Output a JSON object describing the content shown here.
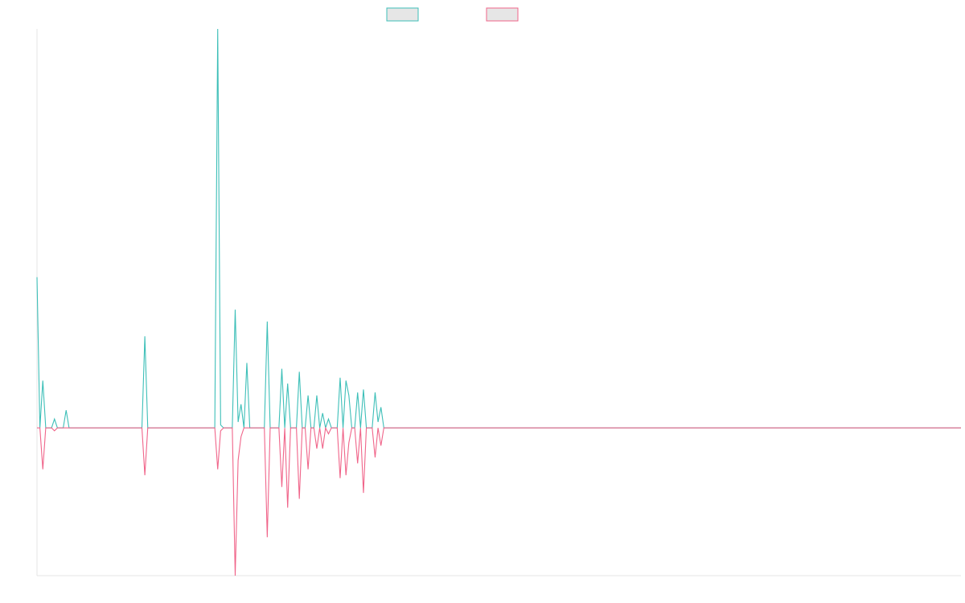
{
  "colors": {
    "background": "#ffffff",
    "axis": "#e4e4e4",
    "legend_fill": "#e6e6e6"
  },
  "chart_data": {
    "type": "line",
    "title": "",
    "xlabel": "",
    "ylabel": "",
    "grid": false,
    "legend_placement": "top-center",
    "x_range": [
      0,
      317
    ],
    "ylim": [
      -50,
      135
    ],
    "series": [
      {
        "color": "#3dbfb8",
        "points": [
          [
            0,
            51
          ],
          [
            1,
            0
          ],
          [
            2,
            16
          ],
          [
            3,
            0
          ],
          [
            4,
            0
          ],
          [
            5,
            0
          ],
          [
            6,
            3
          ],
          [
            7,
            0
          ],
          [
            8,
            0
          ],
          [
            9,
            0
          ],
          [
            10,
            6
          ],
          [
            11,
            0
          ],
          [
            36,
            0
          ],
          [
            37,
            31
          ],
          [
            38,
            0
          ],
          [
            61,
            0
          ],
          [
            62,
            135
          ],
          [
            63,
            1
          ],
          [
            64,
            0
          ],
          [
            67,
            0
          ],
          [
            68,
            40
          ],
          [
            69,
            2
          ],
          [
            70,
            8
          ],
          [
            71,
            0
          ],
          [
            72,
            22
          ],
          [
            73,
            0
          ],
          [
            75,
            0
          ],
          [
            76,
            0
          ],
          [
            77,
            0
          ],
          [
            78,
            0
          ],
          [
            79,
            36
          ],
          [
            80,
            0
          ],
          [
            82,
            0
          ],
          [
            83,
            0
          ],
          [
            84,
            20
          ],
          [
            85,
            0
          ],
          [
            86,
            15
          ],
          [
            87,
            0
          ],
          [
            88,
            0
          ],
          [
            89,
            0
          ],
          [
            90,
            19
          ],
          [
            91,
            0
          ],
          [
            92,
            0
          ],
          [
            93,
            11
          ],
          [
            94,
            0
          ],
          [
            95,
            0
          ],
          [
            96,
            11
          ],
          [
            97,
            0
          ],
          [
            98,
            5
          ],
          [
            99,
            0
          ],
          [
            100,
            3
          ],
          [
            101,
            0
          ],
          [
            102,
            0
          ],
          [
            103,
            0
          ],
          [
            104,
            17
          ],
          [
            105,
            0
          ],
          [
            106,
            16
          ],
          [
            107,
            11
          ],
          [
            108,
            0
          ],
          [
            109,
            0
          ],
          [
            110,
            12
          ],
          [
            111,
            0
          ],
          [
            112,
            13
          ],
          [
            113,
            0
          ],
          [
            114,
            0
          ],
          [
            115,
            0
          ],
          [
            116,
            12
          ],
          [
            117,
            2
          ],
          [
            118,
            7
          ],
          [
            119,
            0
          ],
          [
            317,
            0
          ]
        ]
      },
      {
        "color": "#f0658a",
        "points": [
          [
            0,
            0
          ],
          [
            1,
            0
          ],
          [
            2,
            -14
          ],
          [
            3,
            0
          ],
          [
            4,
            0
          ],
          [
            5,
            0
          ],
          [
            6,
            -1
          ],
          [
            7,
            0
          ],
          [
            8,
            0
          ],
          [
            9,
            0
          ],
          [
            10,
            0
          ],
          [
            11,
            0
          ],
          [
            36,
            0
          ],
          [
            37,
            -16
          ],
          [
            38,
            0
          ],
          [
            61,
            0
          ],
          [
            62,
            -14
          ],
          [
            63,
            -1
          ],
          [
            64,
            0
          ],
          [
            67,
            0
          ],
          [
            68,
            -50
          ],
          [
            69,
            -11
          ],
          [
            70,
            -3
          ],
          [
            71,
            0
          ],
          [
            72,
            0
          ],
          [
            73,
            0
          ],
          [
            75,
            0
          ],
          [
            76,
            0
          ],
          [
            77,
            0
          ],
          [
            78,
            0
          ],
          [
            79,
            -37
          ],
          [
            80,
            0
          ],
          [
            82,
            0
          ],
          [
            83,
            0
          ],
          [
            84,
            -20
          ],
          [
            85,
            0
          ],
          [
            86,
            -27
          ],
          [
            87,
            0
          ],
          [
            88,
            0
          ],
          [
            89,
            0
          ],
          [
            90,
            -24
          ],
          [
            91,
            0
          ],
          [
            92,
            0
          ],
          [
            93,
            -14
          ],
          [
            94,
            0
          ],
          [
            95,
            0
          ],
          [
            96,
            -7
          ],
          [
            97,
            0
          ],
          [
            98,
            -7
          ],
          [
            99,
            0
          ],
          [
            100,
            -2
          ],
          [
            101,
            0
          ],
          [
            102,
            0
          ],
          [
            103,
            0
          ],
          [
            104,
            -17
          ],
          [
            105,
            0
          ],
          [
            106,
            -16
          ],
          [
            107,
            -5
          ],
          [
            108,
            0
          ],
          [
            109,
            0
          ],
          [
            110,
            -12
          ],
          [
            111,
            0
          ],
          [
            112,
            -22
          ],
          [
            113,
            0
          ],
          [
            114,
            0
          ],
          [
            115,
            0
          ],
          [
            116,
            -10
          ],
          [
            117,
            0
          ],
          [
            118,
            -6
          ],
          [
            119,
            0
          ],
          [
            317,
            0
          ]
        ]
      }
    ]
  }
}
